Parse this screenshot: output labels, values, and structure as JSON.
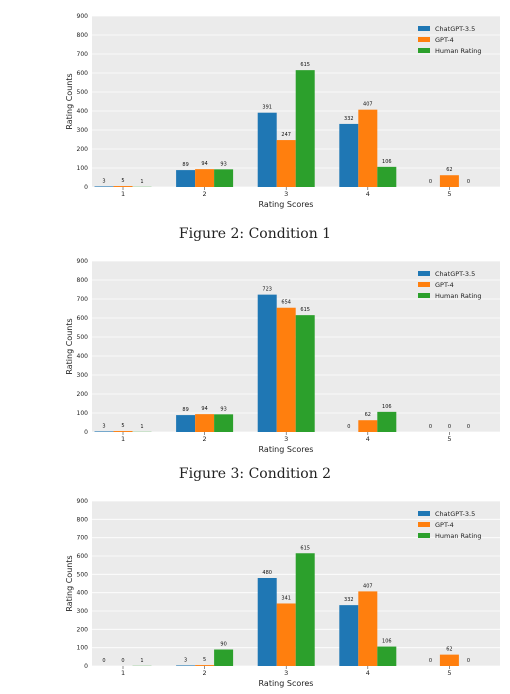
{
  "colors": {
    "ChatGPT-3.5": "#1f77b4",
    "GPT-4": "#ff7f0e",
    "Human Rating": "#2ca02c",
    "plot_bg": "#ebebeb"
  },
  "captions": [
    "Figure 2: Condition 1",
    "Figure 3: Condition 2"
  ],
  "chart_data": [
    {
      "type": "bar",
      "xlabel": "Rating Scores",
      "ylabel": "Rating Counts",
      "categories": [
        "1",
        "2",
        "3",
        "4",
        "5"
      ],
      "ylim": [
        0,
        900
      ],
      "yticks": [
        0,
        100,
        200,
        300,
        400,
        500,
        600,
        700,
        800,
        900
      ],
      "grid": true,
      "legend_position": "top-right",
      "series": [
        {
          "name": "ChatGPT-3.5",
          "values": [
            3,
            89,
            391,
            332,
            0
          ]
        },
        {
          "name": "GPT-4",
          "values": [
            5,
            94,
            247,
            407,
            62
          ]
        },
        {
          "name": "Human Rating",
          "values": [
            1,
            93,
            615,
            106,
            0
          ]
        }
      ]
    },
    {
      "type": "bar",
      "xlabel": "Rating Scores",
      "ylabel": "Rating Counts",
      "categories": [
        "1",
        "2",
        "3",
        "4",
        "5"
      ],
      "ylim": [
        0,
        900
      ],
      "yticks": [
        0,
        100,
        200,
        300,
        400,
        500,
        600,
        700,
        800,
        900
      ],
      "grid": true,
      "legend_position": "top-right",
      "series": [
        {
          "name": "ChatGPT-3.5",
          "values": [
            3,
            89,
            723,
            0,
            0
          ]
        },
        {
          "name": "GPT-4",
          "values": [
            5,
            94,
            654,
            62,
            0
          ]
        },
        {
          "name": "Human Rating",
          "values": [
            1,
            93,
            615,
            106,
            0
          ]
        }
      ]
    },
    {
      "type": "bar",
      "xlabel": "Rating Scores",
      "ylabel": "Rating Counts",
      "categories": [
        "1",
        "2",
        "3",
        "4",
        "5"
      ],
      "ylim": [
        0,
        900
      ],
      "yticks": [
        0,
        100,
        200,
        300,
        400,
        500,
        600,
        700,
        800,
        900
      ],
      "grid": true,
      "legend_position": "top-right",
      "series": [
        {
          "name": "ChatGPT-3.5",
          "values": [
            0,
            3,
            480,
            332,
            0
          ]
        },
        {
          "name": "GPT-4",
          "values": [
            0,
            5,
            341,
            407,
            62
          ]
        },
        {
          "name": "Human Rating",
          "values": [
            1,
            90,
            615,
            106,
            0
          ]
        }
      ]
    }
  ]
}
